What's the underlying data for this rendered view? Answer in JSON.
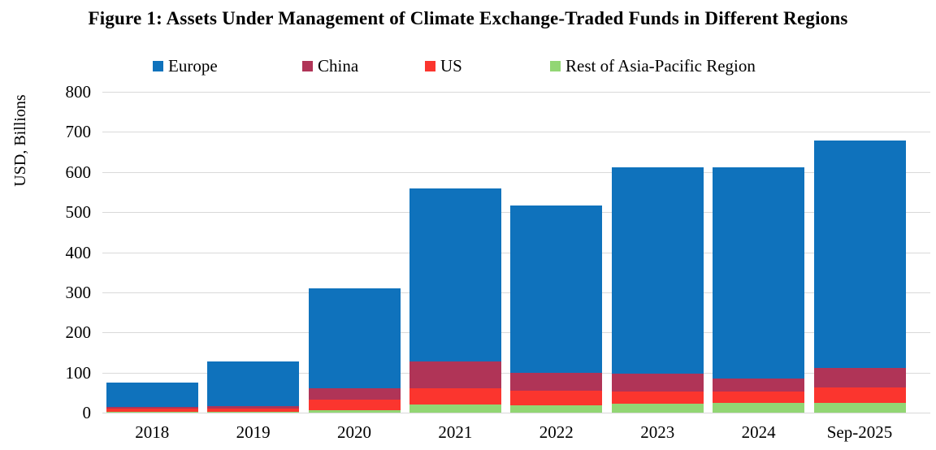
{
  "title": "Figure 1: Assets Under Management of Climate Exchange-Traded Funds in Different Regions",
  "chart_data": {
    "type": "bar",
    "stacked": true,
    "title": "Figure 1: Assets Under Management of Climate Exchange-Traded Funds in Different Regions",
    "xlabel": "",
    "ylabel": "USD, Billions",
    "ylim": [
      0,
      800
    ],
    "ytick_step": 100,
    "yticks": [
      "0",
      "100",
      "200",
      "300",
      "400",
      "500",
      "600",
      "700",
      "800"
    ],
    "grid": true,
    "gridline_color": "#d9d9d9",
    "legend_position": "top",
    "categories": [
      "2018",
      "2019",
      "2020",
      "2021",
      "2022",
      "2023",
      "2024",
      "Sep-2025"
    ],
    "series": [
      {
        "name": "Europe",
        "color": "#0f72bc",
        "values": [
          60,
          110,
          248,
          431,
          416,
          513,
          525,
          567
        ]
      },
      {
        "name": "China",
        "color": "#b03457",
        "values": [
          4,
          6,
          29,
          67,
          45,
          46,
          34,
          49
        ]
      },
      {
        "name": "US",
        "color": "#fb352e",
        "values": [
          10,
          8,
          25,
          41,
          36,
          30,
          28,
          38
        ]
      },
      {
        "name": "Rest of Asia-Pacific Region",
        "color": "#92d674",
        "values": [
          1,
          3,
          7,
          20,
          19,
          22,
          24,
          24
        ]
      }
    ],
    "stack_order_bottom_to_top": [
      "Rest of Asia-Pacific Region",
      "US",
      "China",
      "Europe"
    ],
    "totals": [
      75,
      127,
      309,
      559,
      516,
      611,
      611,
      678
    ]
  }
}
